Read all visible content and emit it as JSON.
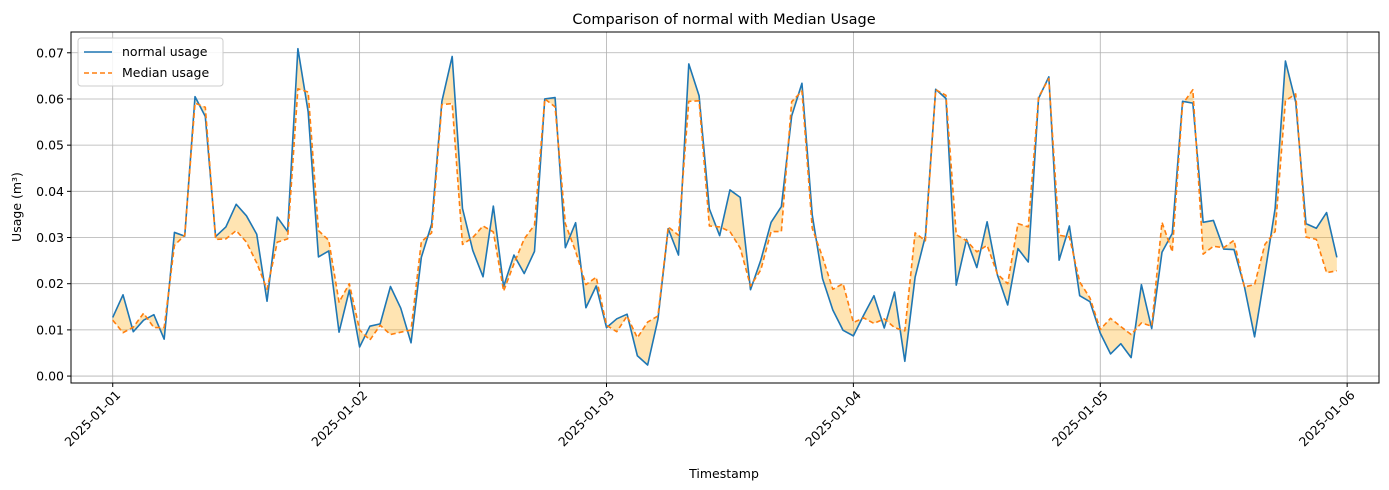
{
  "chart_data": {
    "type": "line",
    "title": "Comparison of normal with Median Usage",
    "xlabel": "Timestamp",
    "ylabel": "Usage (m³)",
    "x_start": "2025-01-01 00:00",
    "x_step_hours": 1,
    "xlim": [
      "2025-01-01",
      "2025-01-06"
    ],
    "ylim": [
      -0.0015,
      0.0745
    ],
    "x_tick_labels": [
      "2025-01-01",
      "2025-01-02",
      "2025-01-03",
      "2025-01-04",
      "2025-01-05",
      "2025-01-06"
    ],
    "y_ticks": [
      0.0,
      0.01,
      0.02,
      0.03,
      0.04,
      0.05,
      0.06,
      0.07
    ],
    "y_tick_labels": [
      "0.00",
      "0.01",
      "0.02",
      "0.03",
      "0.04",
      "0.05",
      "0.06",
      "0.07"
    ],
    "grid": true,
    "legend_position": "upper-left",
    "fill_between": {
      "color": "#ffa500",
      "alpha": 0.3
    },
    "series": [
      {
        "name": "normal usage",
        "color": "#1f77b4",
        "style": "solid",
        "values": [
          0.0127,
          0.0176,
          0.0096,
          0.0121,
          0.0133,
          0.008,
          0.0311,
          0.0303,
          0.0605,
          0.0562,
          0.0302,
          0.0323,
          0.0372,
          0.0347,
          0.0307,
          0.0162,
          0.0344,
          0.0313,
          0.0709,
          0.0572,
          0.0258,
          0.0271,
          0.0095,
          0.0186,
          0.0063,
          0.0108,
          0.0113,
          0.0194,
          0.0147,
          0.0072,
          0.0257,
          0.0329,
          0.0595,
          0.0692,
          0.0363,
          0.0272,
          0.0215,
          0.0368,
          0.0194,
          0.0262,
          0.0222,
          0.027,
          0.06,
          0.0603,
          0.0278,
          0.0332,
          0.0148,
          0.0195,
          0.0105,
          0.0124,
          0.0134,
          0.0044,
          0.0024,
          0.0123,
          0.0319,
          0.0262,
          0.0676,
          0.0607,
          0.0362,
          0.0304,
          0.0403,
          0.0387,
          0.0187,
          0.0251,
          0.0333,
          0.0367,
          0.0563,
          0.0634,
          0.0349,
          0.0211,
          0.0143,
          0.0099,
          0.0087,
          0.0132,
          0.0174,
          0.0104,
          0.0182,
          0.0032,
          0.0214,
          0.0303,
          0.0621,
          0.0601,
          0.0197,
          0.0296,
          0.0235,
          0.0334,
          0.0219,
          0.0154,
          0.0276,
          0.0247,
          0.0601,
          0.0648,
          0.0251,
          0.0325,
          0.0174,
          0.0161,
          0.0093,
          0.0048,
          0.007,
          0.004,
          0.0198,
          0.0103,
          0.0268,
          0.0309,
          0.0595,
          0.0591,
          0.0333,
          0.0337,
          0.0275,
          0.0274,
          0.0195,
          0.0085,
          0.0221,
          0.0363,
          0.0682,
          0.0593,
          0.033,
          0.032,
          0.0354,
          0.0257
        ]
      },
      {
        "name": "Median usage",
        "color": "#ff7f0e",
        "style": "dashed",
        "values": [
          0.0121,
          0.0094,
          0.0106,
          0.0136,
          0.0105,
          0.0105,
          0.0283,
          0.0305,
          0.0591,
          0.0582,
          0.0296,
          0.0297,
          0.0315,
          0.029,
          0.0245,
          0.0188,
          0.029,
          0.0297,
          0.0622,
          0.0615,
          0.0315,
          0.0294,
          0.016,
          0.02,
          0.01,
          0.0078,
          0.011,
          0.009,
          0.0095,
          0.01,
          0.0291,
          0.031,
          0.0588,
          0.059,
          0.0285,
          0.03,
          0.0325,
          0.0312,
          0.0184,
          0.0243,
          0.0297,
          0.0327,
          0.06,
          0.0583,
          0.033,
          0.027,
          0.0198,
          0.0214,
          0.011,
          0.0096,
          0.013,
          0.0083,
          0.0117,
          0.013,
          0.0323,
          0.0305,
          0.0595,
          0.0596,
          0.0325,
          0.0323,
          0.0313,
          0.0277,
          0.0195,
          0.023,
          0.0313,
          0.0313,
          0.0594,
          0.0617,
          0.032,
          0.0258,
          0.0188,
          0.02,
          0.0116,
          0.0126,
          0.0114,
          0.0124,
          0.0105,
          0.0098,
          0.031,
          0.0293,
          0.062,
          0.0608,
          0.0306,
          0.0293,
          0.0269,
          0.0283,
          0.0221,
          0.02,
          0.033,
          0.0323,
          0.0604,
          0.0644,
          0.0305,
          0.0301,
          0.0204,
          0.0169,
          0.0101,
          0.0125,
          0.0107,
          0.009,
          0.0115,
          0.0108,
          0.0333,
          0.0269,
          0.0589,
          0.062,
          0.0264,
          0.0281,
          0.0278,
          0.0294,
          0.0193,
          0.0198,
          0.0285,
          0.0313,
          0.0596,
          0.0611,
          0.0301,
          0.0296,
          0.0224,
          0.0228
        ]
      }
    ]
  }
}
